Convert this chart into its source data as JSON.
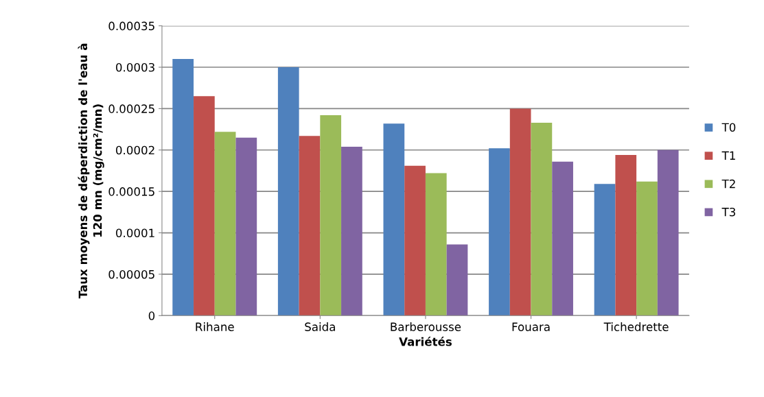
{
  "chart_data": {
    "type": "bar",
    "xlabel": "Variétés",
    "ylabel": "Taux moyens de déperdiction de l'eau à\n120 mn (mg/cm²/mn)",
    "categories": [
      "Rihane",
      "Saida",
      "Barberousse",
      "Fouara",
      "Tichedrette"
    ],
    "series": [
      {
        "name": "T0",
        "color": "#4f81bd",
        "values": [
          0.00031,
          0.0003,
          0.000232,
          0.000202,
          0.000159
        ]
      },
      {
        "name": "T1",
        "color": "#c0504d",
        "values": [
          0.000265,
          0.000217,
          0.000181,
          0.00025,
          0.000194
        ]
      },
      {
        "name": "T2",
        "color": "#9bbb59",
        "values": [
          0.000222,
          0.000242,
          0.000172,
          0.000233,
          0.000162
        ]
      },
      {
        "name": "T3",
        "color": "#8064a2",
        "values": [
          0.000215,
          0.000204,
          8.6e-05,
          0.000186,
          0.0002
        ]
      }
    ],
    "ylim": [
      0,
      0.00035
    ],
    "yticks": [
      {
        "value": 0,
        "label": "0"
      },
      {
        "value": 5e-05,
        "label": "0.00005"
      },
      {
        "value": 0.0001,
        "label": "0.0001"
      },
      {
        "value": 0.00015,
        "label": "0.00015"
      },
      {
        "value": 0.0002,
        "label": "0.0002"
      },
      {
        "value": 0.00025,
        "label": "0.00025"
      },
      {
        "value": 0.0003,
        "label": "0.0003"
      },
      {
        "value": 0.00035,
        "label": "0.00035"
      }
    ],
    "grid": "y",
    "legend": "right"
  }
}
